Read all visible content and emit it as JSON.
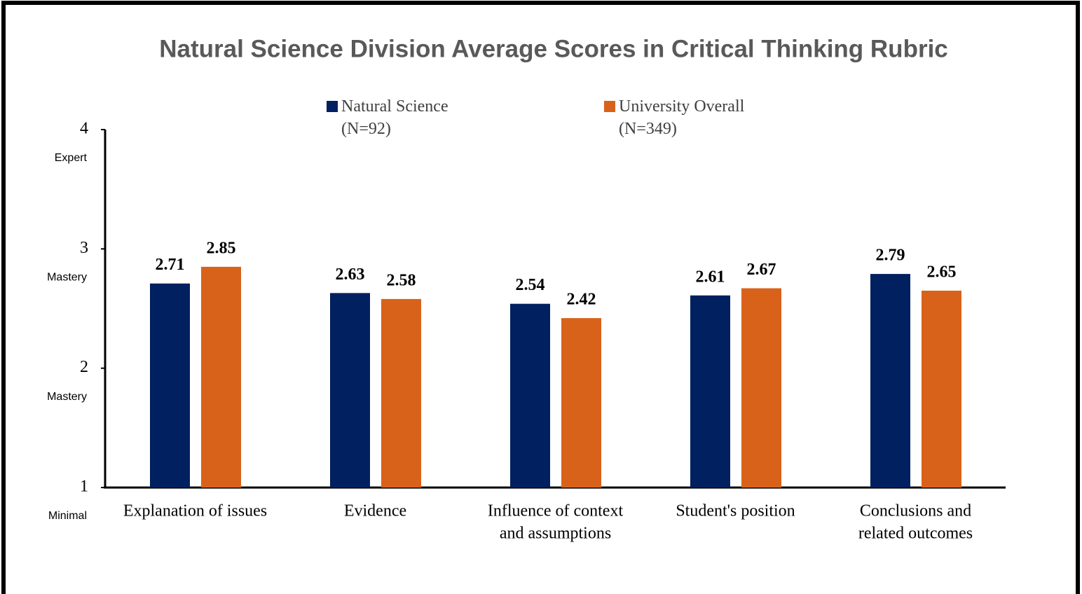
{
  "chart_data": {
    "type": "bar",
    "title": "Natural Science Division Average Scores in Critical Thinking Rubric",
    "categories": [
      [
        "Explanation of issues"
      ],
      [
        "Evidence"
      ],
      [
        "Influence of context",
        "and assumptions"
      ],
      [
        "Student's position"
      ],
      [
        "Conclusions and",
        "related outcomes"
      ]
    ],
    "series": [
      {
        "name": "Natural Science (N=92)",
        "color": "#002060",
        "values": [
          2.71,
          2.63,
          2.54,
          2.61,
          2.79
        ]
      },
      {
        "name": "University Overall (N=349)",
        "color": "#d9621a",
        "values": [
          2.85,
          2.58,
          2.42,
          2.67,
          2.65
        ]
      }
    ],
    "ylim": [
      1,
      4
    ],
    "yticks": [
      1,
      2,
      3,
      4
    ],
    "ytick_sublabels": [
      "Minimal",
      "Mastery",
      "Mastery",
      "Expert"
    ],
    "grid": false
  }
}
